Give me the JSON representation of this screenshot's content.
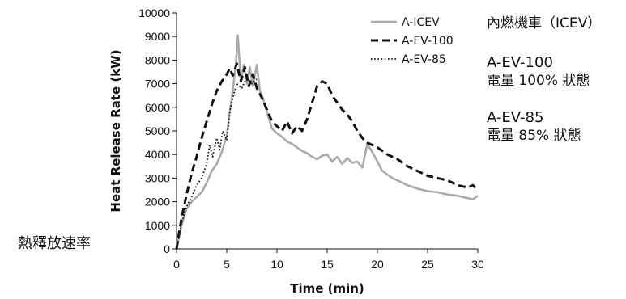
{
  "chart_data": {
    "type": "line",
    "xlabel": "Time (min)",
    "ylabel": "Heat Release Rate (kW)",
    "xlim": [
      0,
      30
    ],
    "ylim": [
      0,
      10000
    ],
    "xticks": [
      "0",
      "5",
      "10",
      "15",
      "20",
      "25",
      "30"
    ],
    "yticks": [
      "0",
      "1000",
      "2000",
      "3000",
      "4000",
      "5000",
      "6000",
      "7000",
      "8000",
      "9000",
      "10000"
    ],
    "grid": false,
    "legend_position": "top-right",
    "series": [
      {
        "name": "A-ICEV",
        "color": "#aaaaaa",
        "style": "solid",
        "x": [
          0,
          0.5,
          1,
          1.5,
          2,
          2.5,
          3,
          3.5,
          4,
          4.5,
          5,
          5.3,
          5.6,
          5.9,
          6.1,
          6.4,
          6.7,
          7,
          7.3,
          7.6,
          8,
          8.3,
          8.6,
          9,
          9.5,
          10,
          10.5,
          11,
          11.5,
          12,
          12.5,
          13,
          13.5,
          14,
          14.5,
          15,
          15.5,
          16,
          16.5,
          17,
          17.5,
          18,
          18.5,
          19,
          19.5,
          20,
          20.5,
          21,
          21.5,
          22,
          22.5,
          23,
          24,
          25,
          26,
          27,
          28,
          29,
          29.5,
          30
        ],
        "y": [
          0,
          1000,
          1700,
          2000,
          2200,
          2400,
          2800,
          3300,
          3600,
          4100,
          4800,
          5800,
          6700,
          7800,
          9050,
          7100,
          7800,
          7000,
          7700,
          6900,
          7800,
          6700,
          6400,
          5800,
          5100,
          4900,
          4750,
          4550,
          4450,
          4300,
          4150,
          4050,
          3900,
          3800,
          3950,
          4000,
          3700,
          3900,
          3600,
          3850,
          3650,
          3700,
          3450,
          4450,
          4100,
          3700,
          3300,
          3150,
          3000,
          2900,
          2800,
          2700,
          2550,
          2450,
          2400,
          2300,
          2250,
          2150,
          2100,
          2250
        ]
      },
      {
        "name": "A-EV-100",
        "color": "#111111",
        "style": "dashed",
        "x": [
          0,
          0.3,
          0.6,
          1,
          1.5,
          2,
          2.5,
          3,
          3.5,
          4,
          4.5,
          5,
          5.3,
          5.6,
          6,
          6.4,
          6.8,
          7.2,
          7.6,
          8,
          8.5,
          9,
          9.5,
          10,
          10.5,
          11,
          11.5,
          12,
          12.5,
          13,
          13.5,
          14,
          14.5,
          15,
          15.5,
          16,
          16.5,
          17,
          17.5,
          18,
          18.5,
          19,
          19.5,
          20,
          21,
          22,
          23,
          24,
          25,
          26,
          27,
          28,
          29,
          29.5,
          30
        ],
        "y": [
          0,
          800,
          1500,
          2300,
          3200,
          3900,
          4700,
          5400,
          6100,
          6700,
          7100,
          7400,
          7650,
          7350,
          7850,
          7100,
          7700,
          6900,
          7400,
          6800,
          6400,
          5900,
          5400,
          5200,
          5000,
          5400,
          4900,
          5200,
          5000,
          5500,
          6200,
          6900,
          7100,
          7000,
          6500,
          6200,
          5900,
          5700,
          5400,
          5000,
          4700,
          4500,
          4400,
          4300,
          4000,
          3800,
          3500,
          3300,
          3100,
          3000,
          2900,
          2700,
          2600,
          2700,
          2500
        ]
      },
      {
        "name": "A-EV-85",
        "color": "#111111",
        "style": "dotted",
        "x": [
          0,
          0.5,
          1,
          1.5,
          2,
          2.5,
          3,
          3.3,
          3.6,
          4,
          4.3,
          4.6,
          5,
          5.3,
          5.6,
          6,
          6.5,
          7,
          7.5,
          8
        ],
        "y": [
          0,
          1100,
          1800,
          2200,
          2700,
          3000,
          3600,
          4400,
          3900,
          4700,
          4200,
          5000,
          4600,
          5800,
          6400,
          7000,
          6800,
          7300,
          7000,
          7200
        ]
      }
    ]
  },
  "annotations": {
    "icev": "內燃機車（ICEV）",
    "ev100_name": "A-EV-100",
    "ev100_desc": "電量 100% 狀態",
    "ev85_name": "A-EV-85",
    "ev85_desc": "電量 85% 狀態",
    "hrr": "熱釋放速率"
  }
}
